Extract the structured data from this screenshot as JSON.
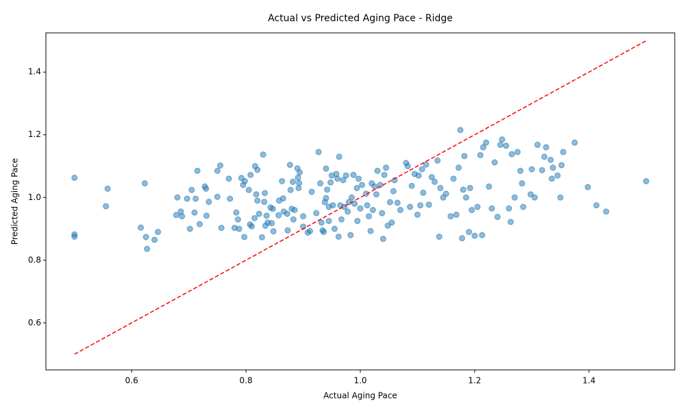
{
  "chart_data": {
    "type": "scatter",
    "title": "Actual vs Predicted Aging Pace - Ridge",
    "x_label": "Actual Aging Pace",
    "y_label": "Predicted Aging Pace",
    "xlim": [
      0.45,
      1.55
    ],
    "ylim": [
      0.45,
      1.525
    ],
    "xticks": [
      0.6,
      0.8,
      {
        "value": 1,
        "label": "1.0"
      },
      1.2,
      1.4
    ],
    "yticks": [
      0.6,
      0.8,
      {
        "value": 1,
        "label": "1.0"
      },
      1.2,
      1.4
    ],
    "grid": false,
    "reference_line": {
      "x": [
        0.5,
        1.5
      ],
      "y": [
        0.5,
        1.5
      ],
      "color": "#ff0000"
    },
    "series": [
      {
        "color": "#1f77b4",
        "x": [
          0.5,
          0.5,
          0.5,
          0.555,
          0.558,
          0.616,
          0.623,
          0.625,
          0.627,
          0.64,
          0.646,
          0.678,
          0.68,
          0.686,
          0.688,
          0.697,
          0.702,
          0.705,
          0.71,
          0.712,
          0.715,
          0.719,
          0.728,
          0.73,
          0.731,
          0.735,
          0.75,
          0.75,
          0.755,
          0.757,
          0.77,
          0.772,
          0.78,
          0.783,
          0.786,
          0.788,
          0.792,
          0.795,
          0.797,
          0.798,
          0.805,
          0.807,
          0.808,
          0.81,
          0.815,
          0.816,
          0.818,
          0.82,
          0.82,
          0.823,
          0.828,
          0.83,
          0.832,
          0.833,
          0.834,
          0.836,
          0.838,
          0.843,
          0.845,
          0.847,
          0.848,
          0.857,
          0.858,
          0.863,
          0.865,
          0.866,
          0.872,
          0.873,
          0.877,
          0.878,
          0.88,
          0.882,
          0.883,
          0.885,
          0.89,
          0.891,
          0.892,
          0.893,
          0.894,
          0.9,
          0.9,
          0.908,
          0.912,
          0.915,
          0.923,
          0.927,
          0.93,
          0.932,
          0.934,
          0.936,
          0.938,
          0.94,
          0.94,
          0.942,
          0.945,
          0.945,
          0.948,
          0.95,
          0.952,
          0.955,
          0.958,
          0.96,
          0.962,
          0.963,
          0.965,
          0.967,
          0.97,
          0.972,
          0.975,
          0.978,
          0.98,
          0.983,
          0.985,
          0.988,
          0.99,
          0.994,
          0.995,
          0.997,
          1.0,
          1.003,
          1.01,
          1.012,
          1.015,
          1.018,
          1.02,
          1.022,
          1.025,
          1.028,
          1.03,
          1.035,
          1.038,
          1.04,
          1.042,
          1.045,
          1.048,
          1.052,
          1.055,
          1.058,
          1.06,
          1.065,
          1.07,
          1.08,
          1.083,
          1.087,
          1.09,
          1.095,
          1.1,
          1.102,
          1.105,
          1.108,
          1.11,
          1.115,
          1.12,
          1.125,
          1.13,
          1.135,
          1.138,
          1.14,
          1.145,
          1.15,
          1.158,
          1.163,
          1.168,
          1.172,
          1.175,
          1.178,
          1.18,
          1.182,
          1.185,
          1.19,
          1.192,
          1.195,
          1.2,
          1.205,
          1.21,
          1.213,
          1.215,
          1.22,
          1.225,
          1.23,
          1.235,
          1.24,
          1.245,
          1.248,
          1.255,
          1.26,
          1.263,
          1.265,
          1.27,
          1.275,
          1.28,
          1.283,
          1.285,
          1.298,
          1.3,
          1.305,
          1.31,
          1.318,
          1.322,
          1.325,
          1.333,
          1.335,
          1.337,
          1.345,
          1.35,
          1.352,
          1.355,
          1.375,
          1.398,
          1.413,
          1.43,
          1.5
        ],
        "y": [
          1.063,
          0.882,
          0.875,
          0.972,
          1.028,
          0.904,
          1.045,
          0.874,
          0.836,
          0.865,
          0.89,
          0.944,
          1.0,
          0.955,
          0.94,
          0.996,
          0.9,
          1.024,
          0.952,
          0.996,
          1.085,
          0.915,
          1.035,
          1.028,
          0.942,
          0.986,
          1.085,
          1.002,
          1.102,
          0.903,
          1.06,
          0.996,
          0.903,
          0.952,
          0.93,
          0.9,
          1.062,
          1.04,
          0.874,
          1.052,
          1.024,
          0.914,
          1.072,
          0.908,
          0.934,
          1.1,
          1.01,
          0.99,
          1.088,
          0.948,
          0.873,
          1.137,
          0.986,
          1.014,
          0.91,
          0.942,
          0.92,
          0.968,
          0.918,
          0.964,
          0.892,
          0.943,
          0.99,
          1.052,
          0.997,
          0.955,
          0.948,
          0.895,
          1.104,
          1.024,
          0.964,
          1.05,
          0.93,
          0.96,
          1.093,
          1.063,
          1.03,
          1.046,
          1.08,
          0.94,
          0.907,
          0.888,
          0.893,
          1.018,
          0.95,
          1.145,
          1.045,
          0.92,
          0.895,
          0.89,
          0.985,
          0.998,
          1.092,
          1.025,
          0.97,
          0.925,
          1.048,
          1.07,
          0.975,
          0.9,
          1.075,
          1.06,
          0.875,
          1.13,
          0.975,
          0.93,
          1.055,
          0.97,
          1.07,
          0.955,
          0.985,
          0.88,
          1.0,
          1.072,
          0.98,
          1.03,
          0.925,
          1.06,
          0.965,
          1.04,
          1.012,
          0.975,
          0.94,
          0.893,
          1.045,
          0.96,
          1.035,
          1.01,
          1.085,
          1.04,
          0.95,
          0.868,
          1.072,
          1.095,
          0.91,
          0.985,
          0.92,
          1.02,
          1.055,
          0.983,
          0.96,
          1.11,
          1.1,
          0.97,
          1.037,
          1.075,
          0.945,
          1.07,
          0.975,
          1.09,
          1.015,
          1.105,
          0.977,
          1.065,
          1.05,
          1.118,
          0.875,
          1.03,
          1.0,
          1.012,
          0.94,
          1.06,
          0.945,
          1.095,
          1.215,
          0.87,
          1.025,
          1.132,
          1.0,
          0.89,
          1.03,
          0.96,
          0.878,
          0.97,
          1.135,
          0.88,
          1.16,
          1.175,
          1.035,
          0.965,
          1.112,
          0.938,
          1.168,
          1.185,
          1.165,
          0.965,
          0.922,
          1.138,
          1.0,
          1.145,
          1.085,
          1.045,
          0.97,
          1.01,
          1.09,
          1.0,
          1.168,
          1.087,
          1.13,
          1.16,
          1.12,
          1.06,
          1.095,
          1.07,
          1.0,
          1.103,
          1.145,
          1.175,
          1.033,
          0.975,
          0.955,
          1.052
        ]
      }
    ]
  }
}
